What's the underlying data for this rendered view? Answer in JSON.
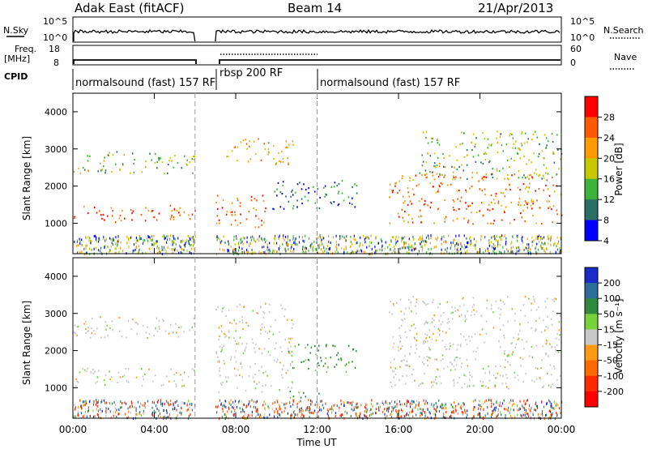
{
  "header": {
    "station": "Adak East (fitACF)",
    "beam": "Beam 14",
    "date": "21/Apr/2013"
  },
  "top_panel": {
    "nsky_label": "N.Sky",
    "nsky_ticks": [
      "10^5",
      "10^0"
    ],
    "nsearch_label": "N.Search",
    "nsearch_ticks": [
      "10^5",
      "10^0"
    ],
    "freq_label_1": "Freq.",
    "freq_label_2": "[MHz]",
    "freq_ticks": [
      "18",
      "8"
    ],
    "nave_label": "Nave",
    "nave_ticks": [
      "60",
      "0"
    ],
    "cpid_label": "CPID",
    "cpid_segments": [
      {
        "label": "normalsound (fast) 157 RF",
        "start_h": 0,
        "end_h": 6
      },
      {
        "label": "rbsp 200 RF",
        "start_h": 7,
        "end_h": 12
      },
      {
        "label": "normalsound (fast) 157 RF",
        "start_h": 12,
        "end_h": 24
      }
    ]
  },
  "colorbars": {
    "power": {
      "label": "Power [dB]",
      "ticks": [
        "28",
        "24",
        "20",
        "16",
        "12",
        "8",
        "4"
      ],
      "colors": [
        "#ff0000",
        "#ff5a00",
        "#ff9a00",
        "#c8c800",
        "#3cb43c",
        "#2a6e64",
        "#0000ff"
      ]
    },
    "velocity": {
      "label": "Velocity [m s⁻¹]",
      "ticks": [
        "200",
        "100",
        "50",
        "15",
        "-15",
        "-50",
        "-100",
        "-200"
      ],
      "colors": [
        "#1a2cc8",
        "#2c6e9a",
        "#2f8a3e",
        "#78d23c",
        "#c8c8c8",
        "#ff9a14",
        "#ff6a00",
        "#ff2a00",
        "#ff0000"
      ]
    }
  },
  "axes": {
    "ylabel": "Slant Range [km]",
    "xlabel": "Time UT",
    "x_ticks": [
      "00:00",
      "04:00",
      "08:00",
      "12:00",
      "16:00",
      "20:00",
      "00:00"
    ],
    "y_ticks": [
      "4000",
      "3000",
      "2000",
      "1000"
    ]
  },
  "chart_data": [
    {
      "type": "heatmap",
      "title": "",
      "xlabel": "Time UT",
      "ylabel": "Slant Range [km]",
      "colorbar": "Power [dB]",
      "xlim_h": [
        0,
        24
      ],
      "ylim_km": [
        180,
        4500
      ],
      "data_gap_h": [
        6,
        7
      ],
      "regions": [
        {
          "x": [
            0,
            6
          ],
          "y": [
            1050,
            1500
          ],
          "value_db": 26
        },
        {
          "x": [
            0,
            6
          ],
          "y": [
            2350,
            2950
          ],
          "value_db": 15
        },
        {
          "x": [
            7,
            9.5
          ],
          "y": [
            900,
            1800
          ],
          "value_db": 26
        },
        {
          "x": [
            7.5,
            10.8
          ],
          "y": [
            2600,
            3300
          ],
          "value_db": 20
        },
        {
          "x": [
            9.8,
            14.2
          ],
          "y": [
            1400,
            2200
          ],
          "value_db": 10
        },
        {
          "x": [
            15.5,
            24
          ],
          "y": [
            1000,
            2400
          ],
          "value_db": 25
        },
        {
          "x": [
            17,
            24
          ],
          "y": [
            2200,
            3500
          ],
          "value_db": 16
        }
      ]
    },
    {
      "type": "heatmap",
      "title": "",
      "xlabel": "Time UT",
      "ylabel": "Slant Range [km]",
      "colorbar": "Velocity [m s⁻¹]",
      "xlim_h": [
        0,
        24
      ],
      "ylim_km": [
        180,
        4500
      ],
      "data_gap_h": [
        6,
        7
      ],
      "regions": [
        {
          "x": [
            0,
            6
          ],
          "y": [
            1050,
            1550
          ],
          "value_ms": 0
        },
        {
          "x": [
            0,
            6
          ],
          "y": [
            2350,
            2950
          ],
          "value_ms": 0
        },
        {
          "x": [
            7,
            10.8
          ],
          "y": [
            900,
            3300
          ],
          "value_ms": 0
        },
        {
          "x": [
            10.5,
            14
          ],
          "y": [
            1400,
            2200
          ],
          "value_ms": 40
        },
        {
          "x": [
            10.5,
            12.2
          ],
          "y": [
            700,
            950
          ],
          "value_ms": 40
        },
        {
          "x": [
            15.5,
            24
          ],
          "y": [
            1000,
            3500
          ],
          "value_ms": 0
        }
      ]
    }
  ]
}
